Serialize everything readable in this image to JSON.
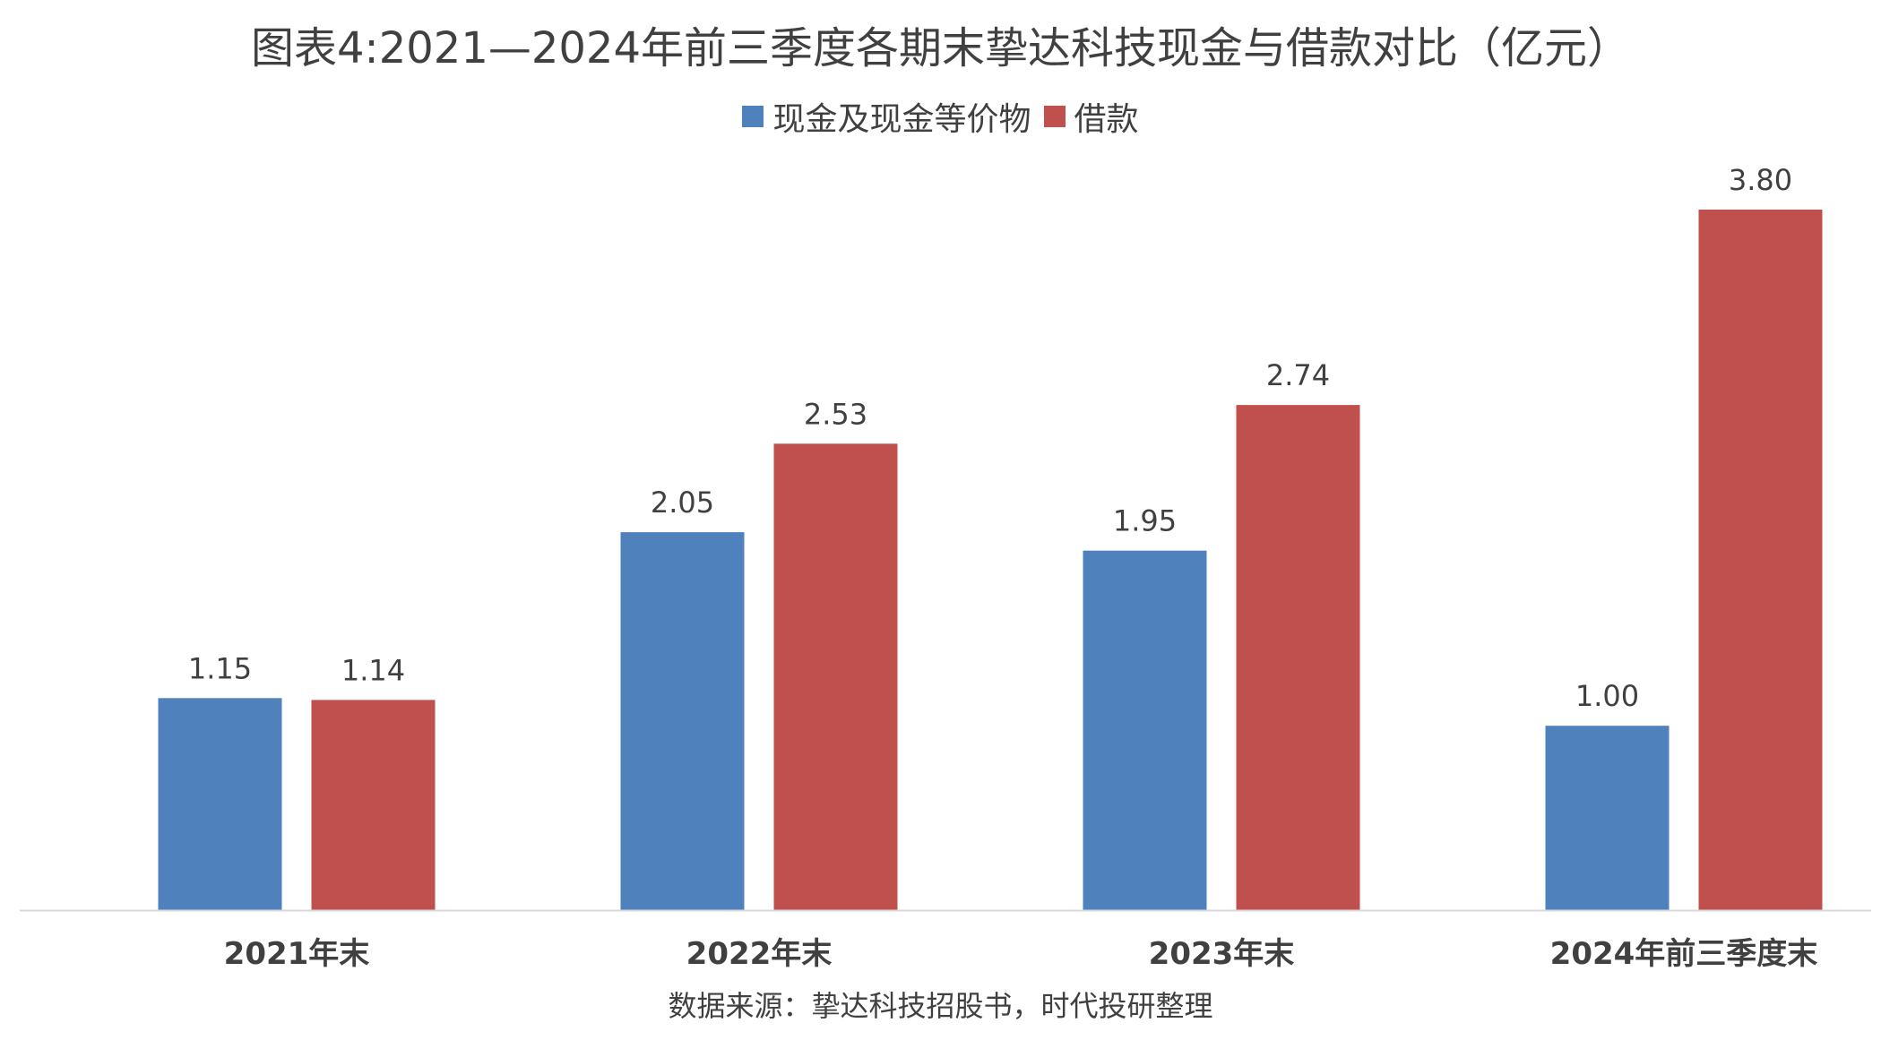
{
  "chart_data": {
    "type": "bar",
    "title": "图表4:2021—2024年前三季度各期末挚达科技现金与借款对比（亿元）",
    "categories": [
      "2021年末",
      "2022年末",
      "2023年末",
      "2024年前三季度末"
    ],
    "series": [
      {
        "name": "现金及现金等价物",
        "values": [
          1.15,
          2.05,
          1.95,
          1.0
        ],
        "labels": [
          "1.15",
          "2.05",
          "1.95",
          "1.00"
        ],
        "color": "#4F81BD"
      },
      {
        "name": "借款",
        "values": [
          1.14,
          2.53,
          2.74,
          3.8
        ],
        "labels": [
          "1.14",
          "2.53",
          "2.74",
          "3.80"
        ],
        "color": "#C0504D"
      }
    ],
    "xlabel": "",
    "ylabel": "",
    "ylim": [
      0,
      4.2
    ],
    "grid": false,
    "legend_position": "top-center"
  },
  "source_note": "数据来源：挚达科技招股书，时代投研整理"
}
